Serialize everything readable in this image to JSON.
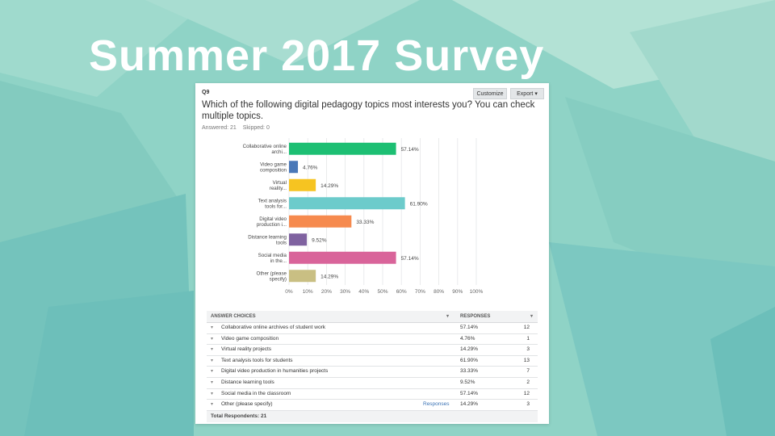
{
  "slide": {
    "title": "Summer 2017 Survey"
  },
  "panel": {
    "question_number": "Q9",
    "customize_label": "Customize",
    "export_label": "Export",
    "question": "Which of the following digital pedagogy topics most interests you? You can check multiple topics.",
    "answered": "Answered: 21",
    "skipped": "Skipped: 0"
  },
  "chart_data": {
    "type": "bar",
    "orientation": "horizontal",
    "categories": [
      "Collaborative online archi...",
      "Video game composition",
      "Virtual reality...",
      "Text analysis tools for...",
      "Digital video production i...",
      "Distance learning tools",
      "Social media in the...",
      "Other (please specify)"
    ],
    "values": [
      57.14,
      4.76,
      14.29,
      61.9,
      33.33,
      9.52,
      57.14,
      14.29
    ],
    "data_labels": [
      "57.14%",
      "4.76%",
      "14.29%",
      "61.90%",
      "33.33%",
      "9.52%",
      "57.14%",
      "14.29%"
    ],
    "colors": [
      "#1dbf73",
      "#4a78b8",
      "#f6c421",
      "#6ccbcb",
      "#f68a4e",
      "#7f62a0",
      "#d9649a",
      "#c9bf83"
    ],
    "xticks": [
      "0%",
      "10%",
      "20%",
      "30%",
      "40%",
      "50%",
      "60%",
      "70%",
      "80%",
      "90%",
      "100%"
    ],
    "xlim": [
      0,
      100
    ],
    "grid": true
  },
  "table": {
    "header_choice": "ANSWER CHOICES",
    "header_responses": "RESPONSES",
    "rows": [
      {
        "choice": "Collaborative online archives of student work",
        "link": "",
        "pct": "57.14%",
        "count": "12"
      },
      {
        "choice": "Video game composition",
        "link": "",
        "pct": "4.76%",
        "count": "1"
      },
      {
        "choice": "Virtual reality projects",
        "link": "",
        "pct": "14.29%",
        "count": "3"
      },
      {
        "choice": "Text analysis tools for students",
        "link": "",
        "pct": "61.90%",
        "count": "13"
      },
      {
        "choice": "Digital video production in humanities projects",
        "link": "",
        "pct": "33.33%",
        "count": "7"
      },
      {
        "choice": "Distance learning tools",
        "link": "",
        "pct": "9.52%",
        "count": "2"
      },
      {
        "choice": "Social media in the classroom",
        "link": "",
        "pct": "57.14%",
        "count": "12"
      },
      {
        "choice": "Other (please specify)",
        "link": "Responses",
        "pct": "14.29%",
        "count": "3"
      }
    ],
    "total": "Total Respondents: 21"
  },
  "colors": {
    "background": "#8fd3c6",
    "panel": "#ffffff"
  }
}
